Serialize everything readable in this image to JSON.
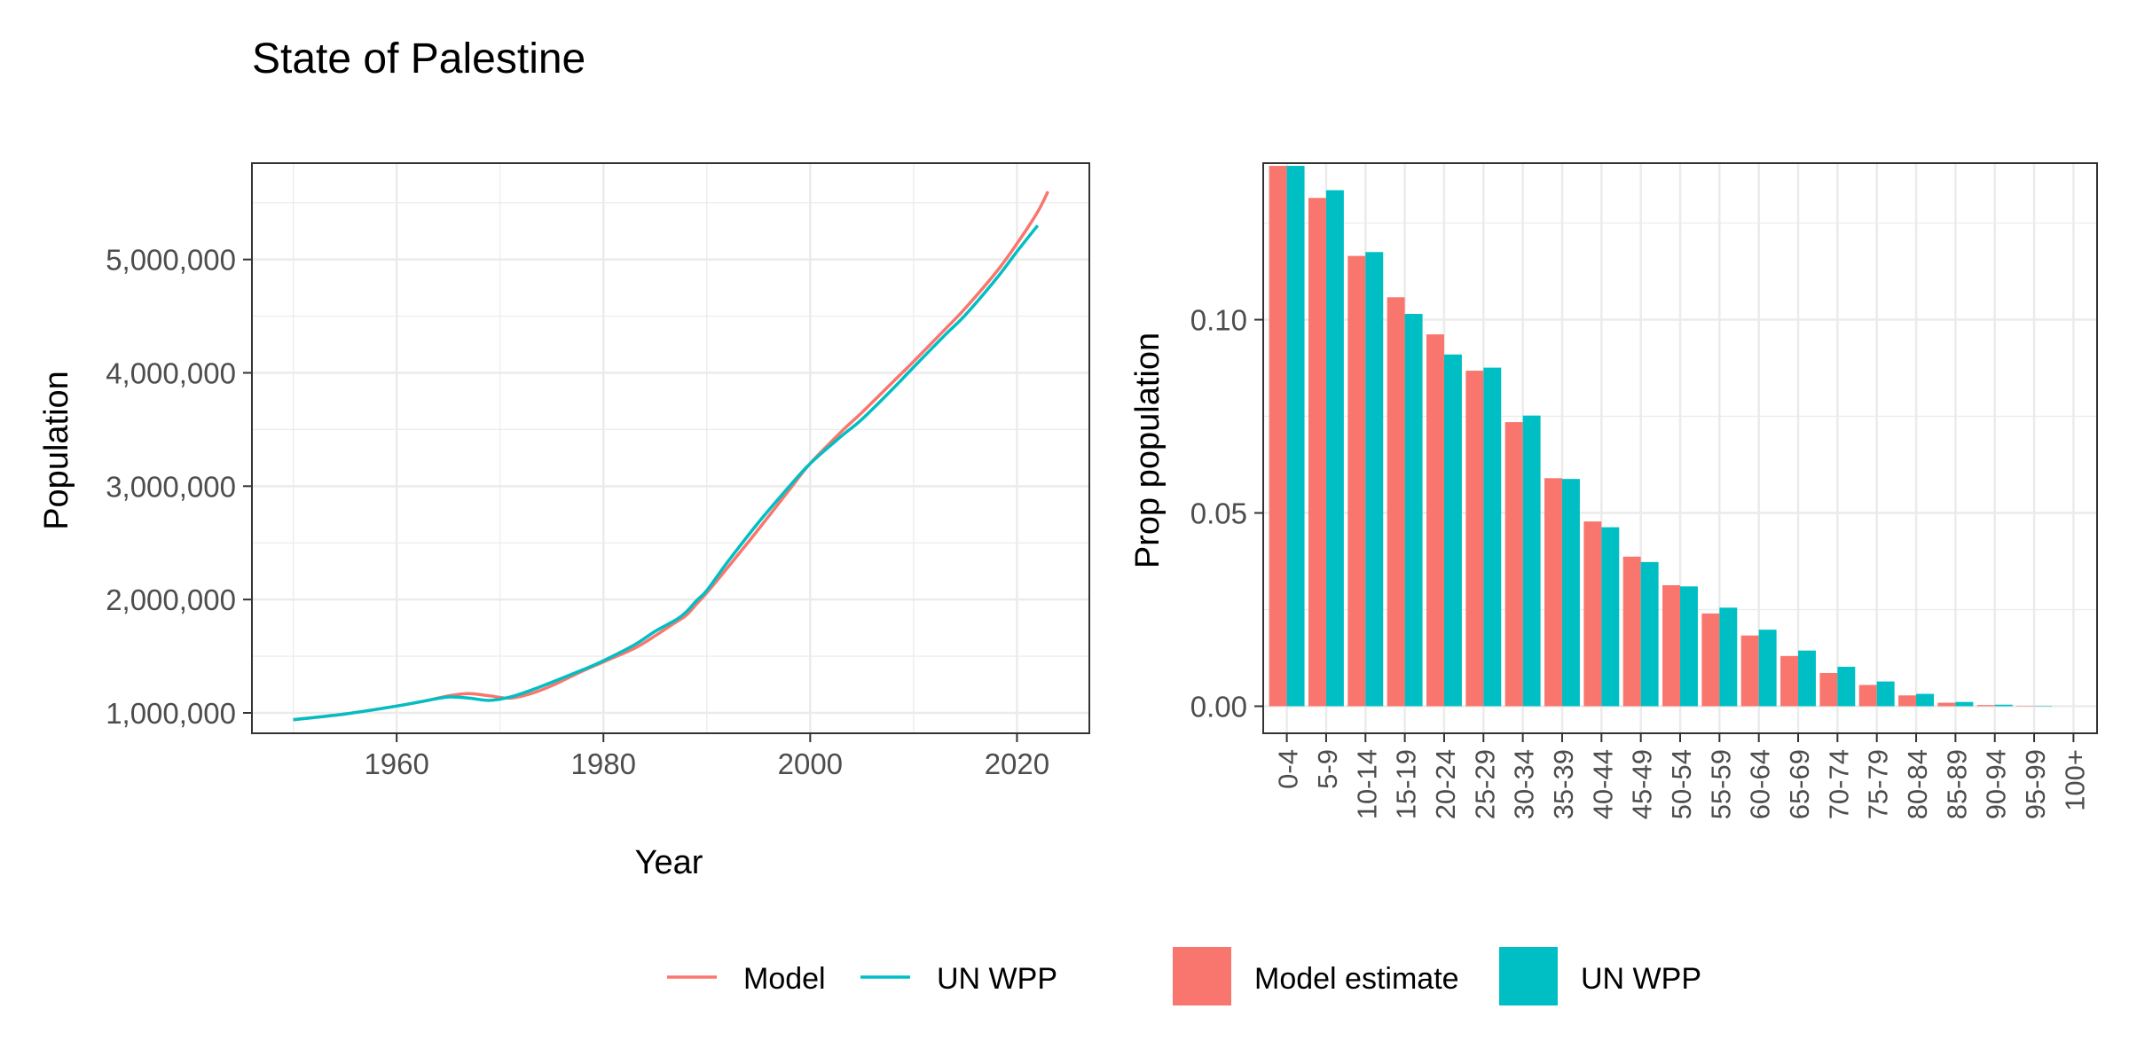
{
  "figure": {
    "title": "State of Palestine"
  },
  "colors": {
    "model": "#F8766D",
    "unwpp": "#00BFC4",
    "grid": "#EBEBEB",
    "axis_text": "#4D4D4D",
    "text": "#000000"
  },
  "legend": {
    "lines": [
      "Model",
      "UN WPP"
    ],
    "bars": [
      "Model estimate",
      "UN WPP"
    ]
  },
  "chart_data": [
    {
      "type": "line",
      "title": "",
      "xlabel": "Year",
      "ylabel": "Population",
      "xlim": [
        1946,
        2027
      ],
      "ylim": [
        820000,
        5850000
      ],
      "x_ticks": [
        1960,
        1980,
        2000,
        2020
      ],
      "x_tick_labels": [
        "1960",
        "1980",
        "2000",
        "2020"
      ],
      "y_ticks": [
        1000000,
        2000000,
        3000000,
        4000000,
        5000000
      ],
      "y_tick_labels": [
        "1,000,000",
        "2,000,000",
        "3,000,000",
        "4,000,000",
        "5,000,000"
      ],
      "grid": true,
      "series": [
        {
          "name": "Model",
          "x": [
            1950,
            1955,
            1960,
            1963,
            1965,
            1967,
            1969,
            1971,
            1973,
            1975,
            1978,
            1980,
            1983,
            1985,
            1987,
            1988,
            1989,
            1990,
            1992,
            1995,
            1998,
            2000,
            2003,
            2005,
            2008,
            2010,
            2013,
            2015,
            2018,
            2020,
            2022,
            2023
          ],
          "y": [
            940000,
            990000,
            1060000,
            1110000,
            1150000,
            1170000,
            1150000,
            1130000,
            1170000,
            1240000,
            1370000,
            1450000,
            1570000,
            1680000,
            1800000,
            1860000,
            1960000,
            2060000,
            2280000,
            2620000,
            2970000,
            3200000,
            3480000,
            3650000,
            3920000,
            4100000,
            4380000,
            4570000,
            4890000,
            5140000,
            5420000,
            5600000
          ]
        },
        {
          "name": "UN WPP",
          "x": [
            1950,
            1955,
            1960,
            1963,
            1965,
            1967,
            1969,
            1971,
            1973,
            1975,
            1978,
            1980,
            1983,
            1985,
            1987,
            1988,
            1989,
            1990,
            1992,
            1995,
            1998,
            2000,
            2003,
            2005,
            2008,
            2010,
            2013,
            2015,
            2018,
            2020,
            2022
          ],
          "y": [
            940000,
            990000,
            1060000,
            1110000,
            1140000,
            1130000,
            1110000,
            1140000,
            1200000,
            1270000,
            1380000,
            1460000,
            1600000,
            1720000,
            1820000,
            1890000,
            1990000,
            2080000,
            2330000,
            2680000,
            3000000,
            3200000,
            3440000,
            3590000,
            3860000,
            4050000,
            4330000,
            4510000,
            4830000,
            5070000,
            5300000
          ]
        }
      ]
    },
    {
      "type": "bar",
      "title": "",
      "xlabel": "",
      "ylabel": "Prop population",
      "ylim": [
        -0.007,
        0.1405
      ],
      "y_ticks": [
        0.0,
        0.05,
        0.1
      ],
      "y_tick_labels": [
        "0.00",
        "0.05",
        "0.10"
      ],
      "grid": true,
      "categories": [
        "0-4",
        "5-9",
        "10-14",
        "15-19",
        "20-24",
        "25-29",
        "30-34",
        "35-39",
        "40-44",
        "45-49",
        "50-54",
        "55-59",
        "60-64",
        "65-69",
        "70-74",
        "75-79",
        "80-84",
        "85-89",
        "90-94",
        "95-99",
        "100+"
      ],
      "series": [
        {
          "name": "Model estimate",
          "values": [
            0.1398,
            0.1315,
            0.1165,
            0.1058,
            0.0962,
            0.0868,
            0.0735,
            0.059,
            0.0478,
            0.0387,
            0.0313,
            0.024,
            0.0183,
            0.013,
            0.0086,
            0.0055,
            0.0028,
            0.0009,
            0.0003,
            0.0001,
            0.0
          ]
        },
        {
          "name": "UN WPP",
          "values": [
            0.1398,
            0.1335,
            0.1175,
            0.1015,
            0.091,
            0.0876,
            0.0752,
            0.0588,
            0.0463,
            0.0373,
            0.031,
            0.0255,
            0.0198,
            0.0144,
            0.0102,
            0.0064,
            0.0032,
            0.0011,
            0.0004,
            0.0001,
            0.0
          ]
        }
      ]
    }
  ]
}
